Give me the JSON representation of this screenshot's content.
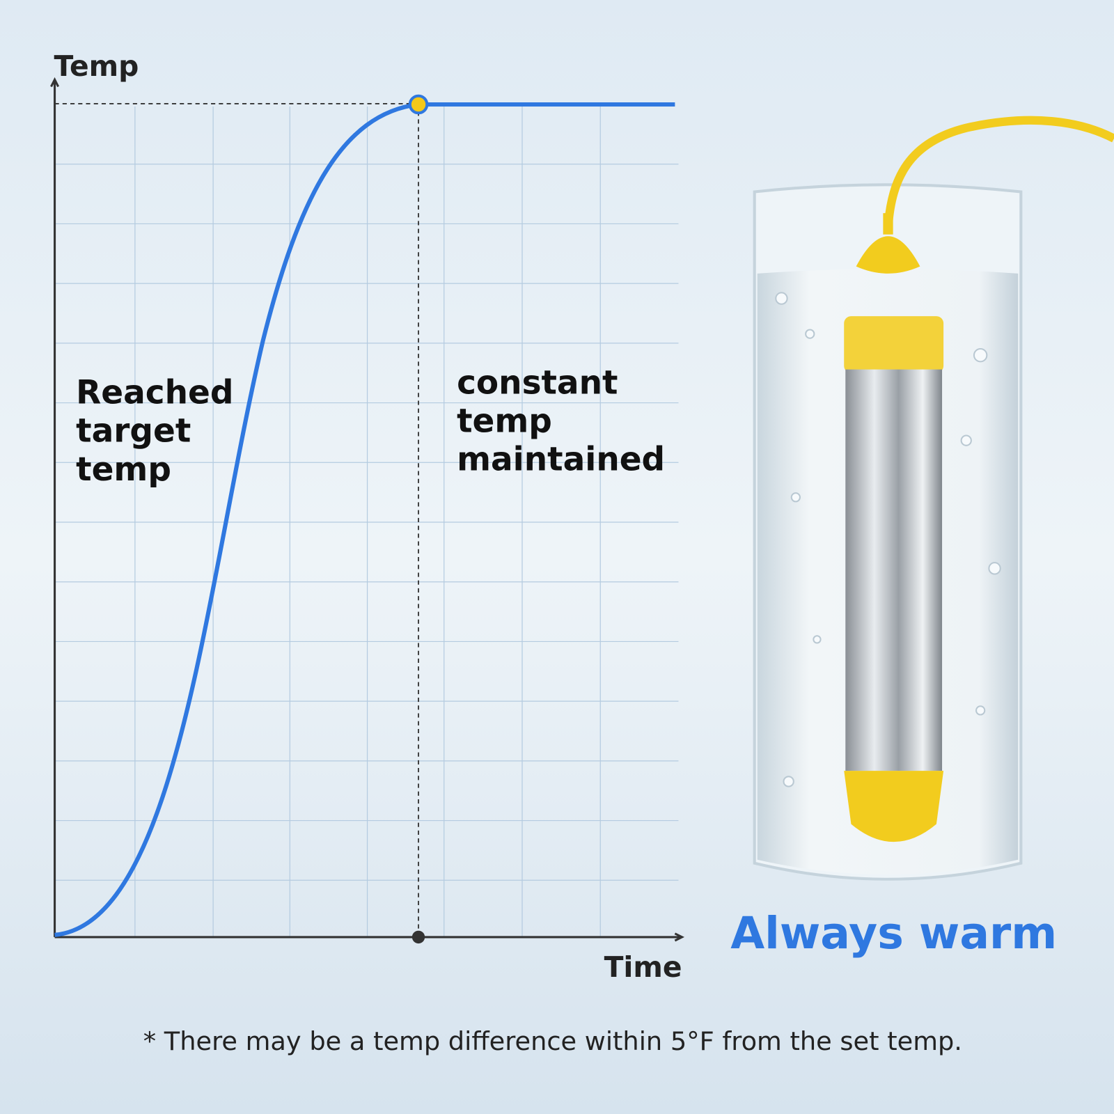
{
  "chart": {
    "y_label": "Temp",
    "x_label": "Time",
    "left_note": [
      "Reached",
      "target",
      "temp"
    ],
    "right_note": [
      "constant",
      "temp",
      "maintained"
    ]
  },
  "headline": "Always warm",
  "footnote": "* There may be a temp difference within 5°F from the set temp."
}
